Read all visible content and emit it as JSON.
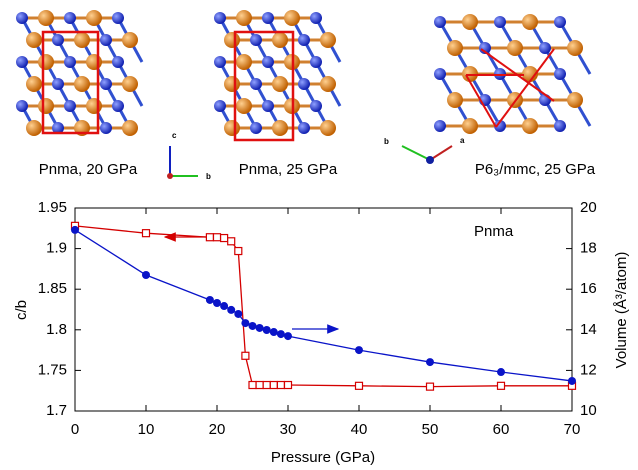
{
  "structures": [
    {
      "label": "Pnma, 20 GPa"
    },
    {
      "label": "Pnma, 25 GPa"
    },
    {
      "label": "P6₃/mmc, 25 GPa"
    }
  ],
  "axis_triads": [
    {
      "labels": [
        "c",
        "b"
      ]
    },
    {
      "labels": [
        "b",
        "a"
      ]
    }
  ],
  "chart_data": {
    "type": "line",
    "annotation": "Pnma",
    "xlabel": "Pressure (GPa)",
    "ylabel": "c/b",
    "y2label": "Volume (Å³/atom)",
    "xlim": [
      0,
      70
    ],
    "xticks": [
      0,
      10,
      20,
      30,
      40,
      50,
      60,
      70
    ],
    "ylim": [
      1.7,
      1.95
    ],
    "yticks": [
      1.7,
      1.75,
      1.8,
      1.85,
      1.9,
      1.95
    ],
    "y2lim": [
      10,
      20
    ],
    "y2ticks": [
      10,
      12,
      14,
      16,
      18,
      20
    ],
    "series": [
      {
        "color": "#d40000",
        "marker": "square",
        "axis": "y",
        "x": [
          0,
          10,
          19,
          20,
          21,
          22,
          23,
          24,
          25,
          26,
          27,
          28,
          29,
          30,
          40,
          50,
          60,
          70
        ],
        "values": [
          1.928,
          1.919,
          1.914,
          1.914,
          1.913,
          1.909,
          1.897,
          1.768,
          1.732,
          1.732,
          1.732,
          1.732,
          1.732,
          1.732,
          1.731,
          1.73,
          1.731,
          1.731
        ]
      },
      {
        "color": "#0a14c8",
        "marker": "circle",
        "axis": "y2",
        "x": [
          0,
          10,
          19,
          20,
          21,
          22,
          23,
          24,
          25,
          26,
          27,
          28,
          29,
          30,
          40,
          50,
          60,
          70
        ],
        "values": [
          18.92,
          16.7,
          15.47,
          15.32,
          15.17,
          14.98,
          14.78,
          14.33,
          14.19,
          14.09,
          13.99,
          13.89,
          13.79,
          13.69,
          13.0,
          12.41,
          11.92,
          11.48
        ]
      }
    ]
  }
}
